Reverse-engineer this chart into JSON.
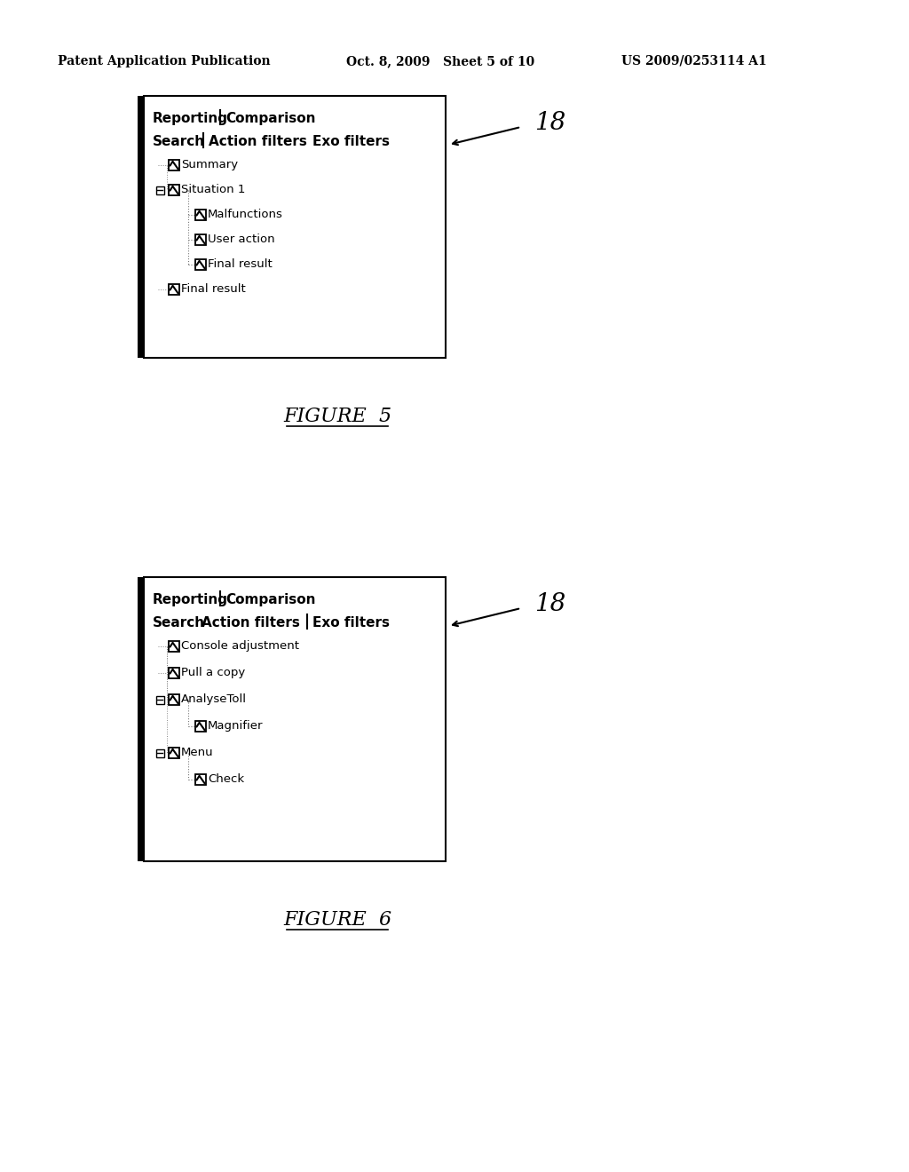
{
  "page_title_left": "Patent Application Publication",
  "page_title_center": "Oct. 8, 2009   Sheet 5 of 10",
  "page_title_right": "US 2009/0253114 A1",
  "fig5_label": "FIGURE  5",
  "fig6_label": "FIGURE  6",
  "panel1": {
    "items": [
      {
        "level": 0,
        "text": "Summary",
        "has_minus": false
      },
      {
        "level": 0,
        "text": "Situation 1",
        "has_minus": true
      },
      {
        "level": 1,
        "text": "Malfunctions",
        "has_minus": false
      },
      {
        "level": 1,
        "text": "User action",
        "has_minus": false
      },
      {
        "level": 1,
        "text": "Final result",
        "has_minus": false
      },
      {
        "level": 0,
        "text": "Final result",
        "has_minus": false
      }
    ],
    "ref_label": "18"
  },
  "panel2": {
    "items": [
      {
        "level": 0,
        "text": "Console adjustment",
        "has_minus": false
      },
      {
        "level": 0,
        "text": "Pull a copy",
        "has_minus": false
      },
      {
        "level": 0,
        "text": "AnalyseToll",
        "has_minus": true
      },
      {
        "level": 1,
        "text": "Magnifier",
        "has_minus": false
      },
      {
        "level": 0,
        "text": "Menu",
        "has_minus": true
      },
      {
        "level": 1,
        "text": "Check",
        "has_minus": false
      }
    ],
    "ref_label": "18"
  }
}
